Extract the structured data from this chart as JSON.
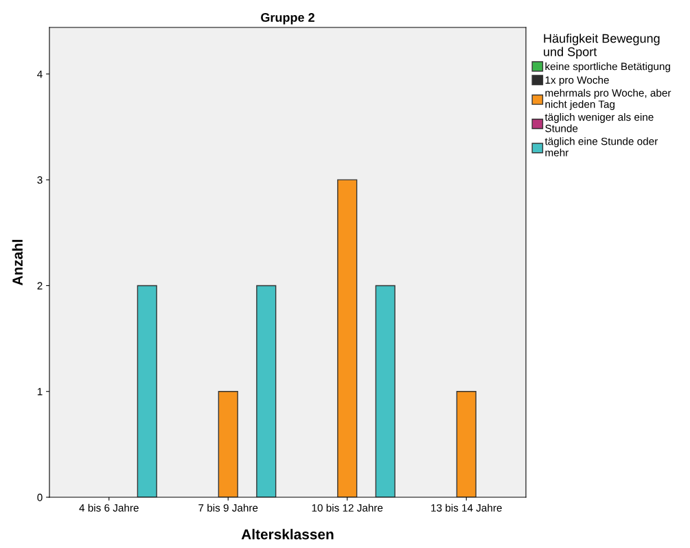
{
  "chart_data": {
    "type": "bar",
    "title": "Gruppe 2",
    "xlabel": "Altersklassen",
    "ylabel": "Anzahl",
    "legend_title": "Häufigkeit Bewegung\nund Sport",
    "categories": [
      "4 bis 6 Jahre",
      "7 bis 9 Jahre",
      "10 bis 12 Jahre",
      "13 bis 14 Jahre"
    ],
    "series": [
      {
        "name": "keine sportliche Betätigung",
        "color": "#3cb44b",
        "values": [
          0,
          0,
          0,
          0
        ]
      },
      {
        "name": "1x pro Woche",
        "color": "#2d2d2d",
        "values": [
          0,
          0,
          0,
          0
        ]
      },
      {
        "name": "mehrmals pro Woche, aber\nnicht jeden Tag",
        "color": "#f7941d",
        "values": [
          0,
          1,
          3,
          1
        ]
      },
      {
        "name": "täglich weniger als eine\nStunde",
        "color": "#b8357a",
        "values": [
          0,
          0,
          0,
          0
        ]
      },
      {
        "name": "täglich eine Stunde oder\nmehr",
        "color": "#45c1c4",
        "values": [
          2,
          2,
          2,
          0
        ]
      }
    ],
    "ylim": [
      0,
      4.44
    ],
    "yticks": [
      0,
      1,
      2,
      3,
      4
    ],
    "grid": false,
    "legend": "right"
  }
}
